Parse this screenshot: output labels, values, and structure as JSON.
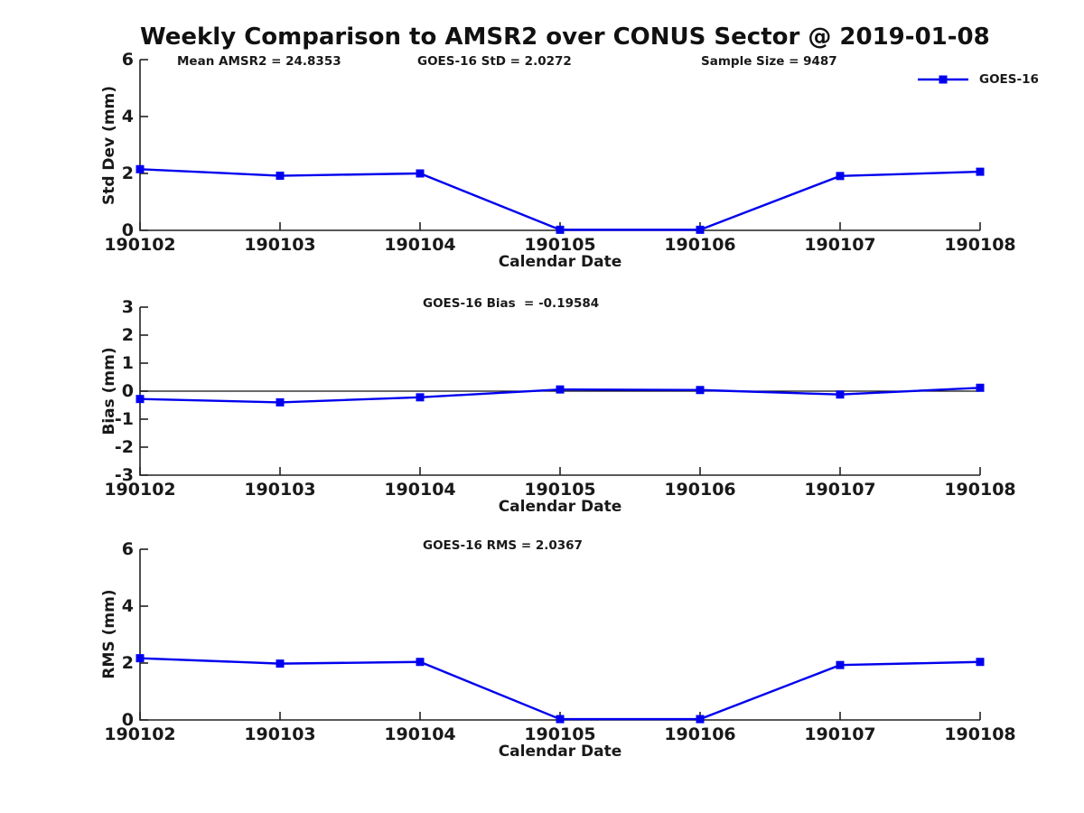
{
  "figure": {
    "title": "Weekly Comparison to AMSR2 over CONUS Sector @ 2019-01-08",
    "stats": {
      "mean_amsr2": "Mean AMSR2 = 24.8353",
      "goes16_std": "GOES-16 StD = 2.0272",
      "sample_size": "Sample Size = 9487"
    },
    "legend": {
      "label": "GOES-16",
      "position": "upper right",
      "color": "#0000EE"
    }
  },
  "chart_data": [
    {
      "type": "line",
      "title": "",
      "annotations": [
        "Mean AMSR2 = 24.8353",
        "GOES-16 StD = 2.0272",
        "Sample Size = 9487"
      ],
      "categories": [
        "190102",
        "190103",
        "190104",
        "190105",
        "190106",
        "190107",
        "190108"
      ],
      "series": [
        {
          "name": "GOES-16",
          "color": "#0000EE",
          "marker": "square",
          "values": [
            2.15,
            1.92,
            2.0,
            0.02,
            0.02,
            1.91,
            2.06
          ]
        }
      ],
      "xlabel": "Calendar Date",
      "ylabel": "Std Dev (mm)",
      "ylim": [
        0,
        6
      ],
      "yticks": [
        0,
        2,
        4,
        6
      ],
      "grid": false,
      "legend_position": "upper right"
    },
    {
      "type": "line",
      "title": "GOES-16 Bias  = -0.19584",
      "categories": [
        "190102",
        "190103",
        "190104",
        "190105",
        "190106",
        "190107",
        "190108"
      ],
      "series": [
        {
          "name": "GOES-16",
          "color": "#0000EE",
          "marker": "square",
          "values": [
            -0.28,
            -0.4,
            -0.22,
            0.06,
            0.04,
            -0.12,
            0.12
          ]
        }
      ],
      "xlabel": "Calendar Date",
      "ylabel": "Bias (mm)",
      "ylim": [
        -3,
        3
      ],
      "yticks": [
        -3,
        -2,
        -1,
        0,
        1,
        2,
        3
      ],
      "zero_line": true,
      "grid": false
    },
    {
      "type": "line",
      "title": "GOES-16 RMS = 2.0367",
      "categories": [
        "190102",
        "190103",
        "190104",
        "190105",
        "190106",
        "190107",
        "190108"
      ],
      "series": [
        {
          "name": "GOES-16",
          "color": "#0000EE",
          "marker": "square",
          "values": [
            2.17,
            1.98,
            2.04,
            0.03,
            0.03,
            1.93,
            2.04
          ]
        }
      ],
      "xlabel": "Calendar Date",
      "ylabel": "RMS (mm)",
      "ylim": [
        0,
        6
      ],
      "yticks": [
        0,
        2,
        4,
        6
      ],
      "grid": false
    }
  ]
}
